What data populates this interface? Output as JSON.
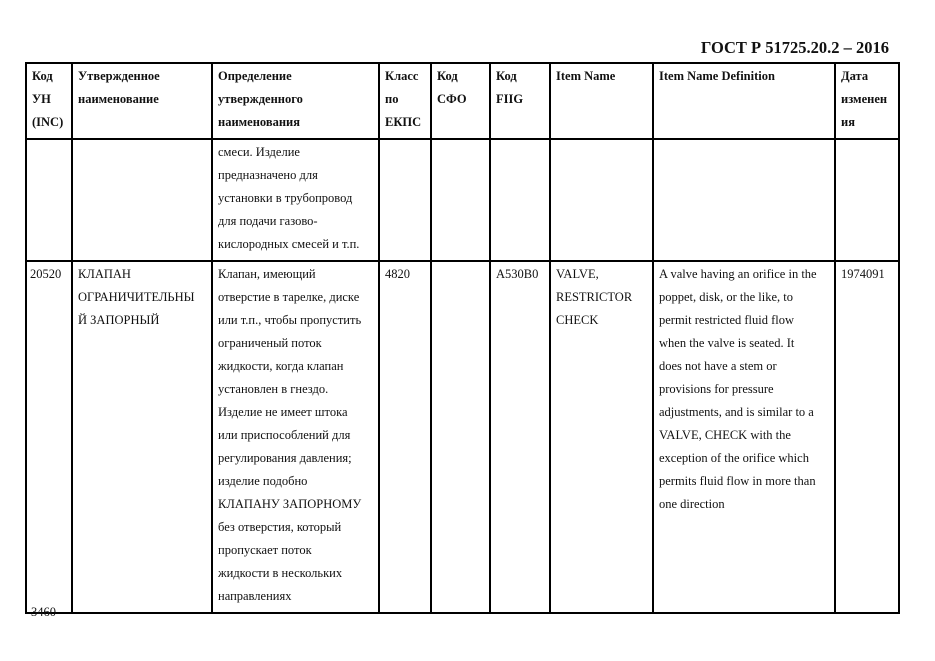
{
  "document": {
    "standard_code": "ГОСТ Р 51725.20.2 – 2016",
    "page_number": "3460"
  },
  "table": {
    "headers": [
      "Код\nУН\n(INC)",
      "Утвержденное\nнаименование",
      "Определение\nутвержденного\nнаименования",
      "Класс\nпо\nЕКПС",
      "Код\nСФО",
      "Код\nFIIG",
      "Item Name",
      "Item Name Definition",
      "Дата\nизменен\nия"
    ],
    "rows": [
      {
        "cells": [
          "",
          "",
          "смеси. Изделие\nпредназначено для\nустановки в трубопровод\nдля подачи газово-\nкислородных смесей и т.п.",
          "",
          "",
          "",
          "",
          "",
          ""
        ]
      },
      {
        "cells": [
          "20520",
          "КЛАПАН\nОГРАНИЧИТЕЛЬНЫ\nЙ ЗАПОРНЫЙ",
          "Клапан, имеющий\nотверстие в тарелке, диске\nили т.п., чтобы пропустить\nограниченый поток\nжидкости, когда клапан\nустановлен в гнездо.\nИзделие не имеет штока\nили приспособлений для\nрегулирования давления;\nизделие подобно\nКЛАПАНУ ЗАПОРНОМУ\nбез отверстия, который\nпропускает поток\nжидкости в нескольких\nнаправлениях",
          "4820",
          "",
          "A530B0",
          "VALVE,\nRESTRICTOR\nCHECK",
          "A valve having an orifice in the\npoppet, disk, or the like, to\npermit restricted fluid flow\nwhen the valve is seated. It\ndoes not have a stem or\nprovisions for pressure\nadjustments, and is similar to a\nVALVE, CHECK with the\nexception of the orifice which\npermits fluid flow in more than\none direction",
          "1974091"
        ]
      }
    ]
  }
}
